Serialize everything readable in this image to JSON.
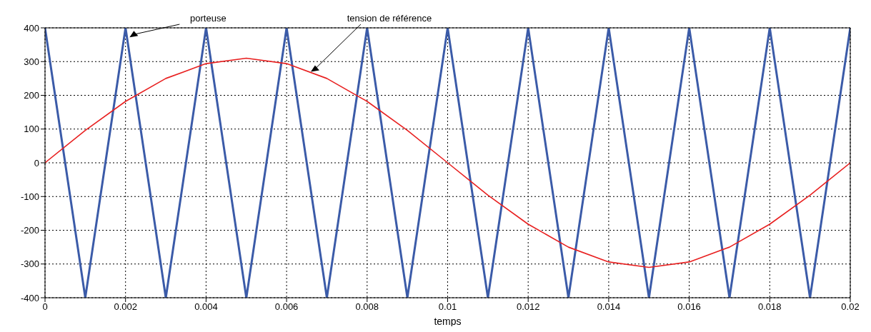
{
  "chart_data": {
    "type": "line",
    "xlabel": "temps",
    "xlim": [
      0,
      0.02
    ],
    "xticks": [
      0,
      0.002,
      0.004,
      0.006,
      0.008,
      0.01,
      0.012,
      0.014,
      0.016,
      0.018,
      0.02
    ],
    "ylim": [
      -400,
      400
    ],
    "yticks": [
      -400,
      -300,
      -200,
      -100,
      0,
      100,
      200,
      300,
      400
    ],
    "grid": true,
    "marker": "none",
    "line_style": "solid",
    "series": [
      {
        "color": "#3b5ba8",
        "x": [
          0,
          0.001,
          0.002,
          0.003,
          0.004,
          0.005,
          0.006,
          0.007,
          0.008,
          0.009,
          0.01,
          0.011,
          0.012,
          0.013,
          0.014,
          0.015,
          0.016,
          0.017,
          0.018,
          0.019,
          0.02
        ],
        "values": [
          400,
          -400,
          400,
          -400,
          400,
          -400,
          400,
          -400,
          400,
          -400,
          400,
          -400,
          400,
          -400,
          400,
          -400,
          400,
          -400,
          400,
          -400,
          400
        ]
      },
      {
        "color": "#e82020",
        "x": [
          0,
          0.001,
          0.002,
          0.003,
          0.004,
          0.005,
          0.006,
          0.007,
          0.008,
          0.009,
          0.01,
          0.011,
          0.012,
          0.013,
          0.014,
          0.015,
          0.016,
          0.017,
          0.018,
          0.019,
          0.02
        ],
        "values": [
          0,
          96,
          182,
          250,
          294,
          310,
          294,
          250,
          182,
          96,
          0,
          -96,
          -182,
          -250,
          -294,
          -310,
          -294,
          -250,
          -182,
          -96,
          0
        ]
      }
    ],
    "annotations": [
      {
        "text": "porteuse",
        "x": 0.0021,
        "y": 370
      },
      {
        "text": "tension de référence",
        "x": 0.0066,
        "y": 268
      }
    ]
  }
}
